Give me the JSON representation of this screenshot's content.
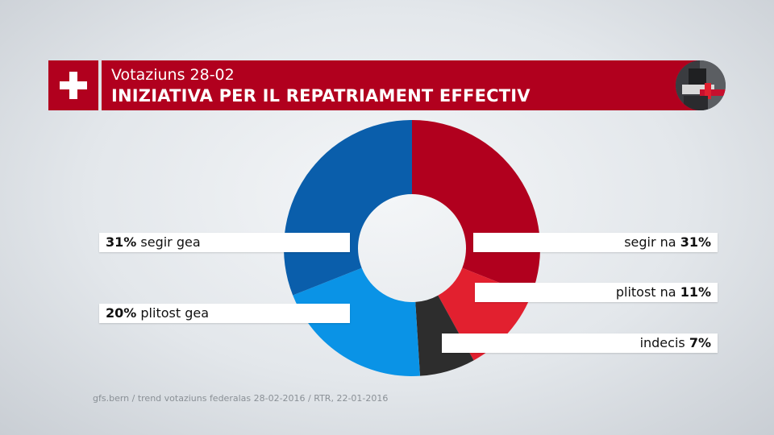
{
  "header": {
    "subtitle": "Votaziuns 28-02",
    "title": "INIZIATIVA PER IL REPATRIAMENT EFFECTIV"
  },
  "colors": {
    "brand_red": "#b1001e",
    "segir_na": "#b1001e",
    "plitost_na": "#e2202f",
    "indecis": "#2d2d2d",
    "plitost_gea": "#0a93e6",
    "segir_gea": "#0a5eab"
  },
  "chart_data": {
    "type": "pie",
    "donut": true,
    "slices": [
      {
        "label": "segir na",
        "value": 31,
        "display": "31%",
        "color": "#b1001e"
      },
      {
        "label": "plitost na",
        "value": 11,
        "display": "11%",
        "color": "#e2202f"
      },
      {
        "label": "indecis",
        "value": 7,
        "display": "7%",
        "color": "#2d2d2d"
      },
      {
        "label": "plitost gea",
        "value": 20,
        "display": "20%",
        "color": "#0a93e6"
      },
      {
        "label": "segir gea",
        "value": 31,
        "display": "31%",
        "color": "#0a5eab"
      }
    ]
  },
  "labels": {
    "segir_gea": {
      "value": "31%",
      "text": "segir gea"
    },
    "plitost_gea": {
      "value": "20%",
      "text": "plitost gea"
    },
    "segir_na": {
      "text": "segir na",
      "value": "31%"
    },
    "plitost_na": {
      "text": "plitost na",
      "value": "11%"
    },
    "indecis": {
      "text": "indecis",
      "value": "7%"
    }
  },
  "source": "gfs.bern / trend votaziuns federalas 28-02-2016 / RTR, 22-01-2016",
  "icons": {
    "flag": "swiss-cross-icon",
    "photo": "ballot-box-photo"
  }
}
